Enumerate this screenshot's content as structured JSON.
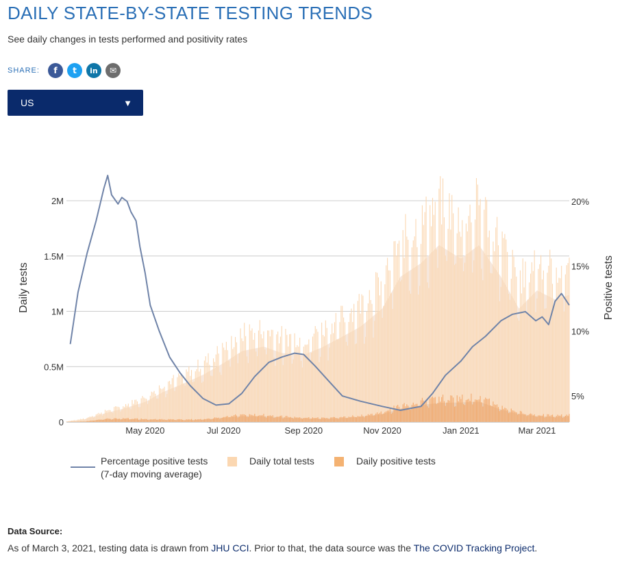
{
  "header": {
    "title": "DAILY STATE-BY-STATE TESTING TRENDS",
    "subtitle": "See daily changes in tests performed and positivity rates"
  },
  "share": {
    "label": "SHARE:",
    "buttons": [
      {
        "name": "facebook",
        "glyph": "f",
        "color": "#3b5998"
      },
      {
        "name": "twitter",
        "glyph": "t",
        "color": "#1da1f2"
      },
      {
        "name": "linkedin",
        "glyph": "in",
        "color": "#0e76a8"
      },
      {
        "name": "email",
        "glyph": "✉",
        "color": "#6d6d6d"
      }
    ]
  },
  "selector": {
    "value": "US"
  },
  "legend": {
    "line_label_1": "Percentage positive tests",
    "line_label_2": "(7-day moving average)",
    "total_label": "Daily total tests",
    "positive_label": "Daily positive tests"
  },
  "colors": {
    "line": "#6f83a8",
    "total_bar": "#fbd7b1",
    "total_area": "#f6e7dc",
    "positive_bar": "#f4a460",
    "positive_area": "#e3c4ac",
    "grid": "#cccccc"
  },
  "source": {
    "title": "Data Source:",
    "text_1": "As of March 3, 2021, testing data is drawn from ",
    "link_1": "JHU CCI",
    "text_2": ". Prior to that, the data source was the ",
    "link_2": "The COVID Tracking Project",
    "text_3": "."
  },
  "chart_data": {
    "type": "bar",
    "title": "",
    "ylabel_left": "Daily tests",
    "ylabel_right": "Positive tests",
    "x_ticks": [
      "May 2020",
      "Jul 2020",
      "Sep 2020",
      "Nov 2020",
      "Jan 2021",
      "Mar 2021"
    ],
    "x_tick_dates": [
      "2020-05-01",
      "2020-07-01",
      "2020-09-01",
      "2020-11-01",
      "2021-01-01",
      "2021-03-01"
    ],
    "x_range": [
      "2020-03-01",
      "2021-03-26"
    ],
    "y_left_ticks": [
      "0",
      "0.5M",
      "1M",
      "1.5M",
      "2M"
    ],
    "y_left_tick_values": [
      0,
      500000,
      1000000,
      1500000,
      2000000
    ],
    "y_left_range": [
      0,
      2000000
    ],
    "y_right_ticks": [
      "5%",
      "10%",
      "15%",
      "20%"
    ],
    "y_right_tick_values": [
      5,
      10,
      15,
      20
    ],
    "y_right_range": [
      3,
      20
    ],
    "grid": true,
    "series": [
      {
        "name": "Daily total tests",
        "points": [
          [
            "2020-03-01",
            5000
          ],
          [
            "2020-03-15",
            30000
          ],
          [
            "2020-04-01",
            100000
          ],
          [
            "2020-04-15",
            150000
          ],
          [
            "2020-05-01",
            220000
          ],
          [
            "2020-05-15",
            330000
          ],
          [
            "2020-06-01",
            430000
          ],
          [
            "2020-06-15",
            520000
          ],
          [
            "2020-07-01",
            650000
          ],
          [
            "2020-07-15",
            780000
          ],
          [
            "2020-08-01",
            830000
          ],
          [
            "2020-08-15",
            760000
          ],
          [
            "2020-09-01",
            740000
          ],
          [
            "2020-09-15",
            820000
          ],
          [
            "2020-10-01",
            940000
          ],
          [
            "2020-10-15",
            1050000
          ],
          [
            "2020-11-01",
            1250000
          ],
          [
            "2020-11-15",
            1600000
          ],
          [
            "2020-12-01",
            1750000
          ],
          [
            "2020-12-15",
            1950000
          ],
          [
            "2021-01-01",
            1800000
          ],
          [
            "2021-01-15",
            1950000
          ],
          [
            "2021-02-01",
            1600000
          ],
          [
            "2021-02-15",
            1250000
          ],
          [
            "2021-03-01",
            1450000
          ],
          [
            "2021-03-15",
            1350000
          ],
          [
            "2021-03-26",
            1400000
          ]
        ]
      },
      {
        "name": "Daily positive tests",
        "points": [
          [
            "2020-03-01",
            800
          ],
          [
            "2020-03-15",
            5000
          ],
          [
            "2020-04-01",
            30000
          ],
          [
            "2020-04-15",
            32000
          ],
          [
            "2020-05-01",
            28000
          ],
          [
            "2020-05-15",
            24000
          ],
          [
            "2020-06-01",
            22000
          ],
          [
            "2020-06-15",
            26000
          ],
          [
            "2020-07-01",
            48000
          ],
          [
            "2020-07-15",
            66000
          ],
          [
            "2020-08-01",
            64000
          ],
          [
            "2020-08-15",
            52000
          ],
          [
            "2020-09-01",
            40000
          ],
          [
            "2020-09-15",
            38000
          ],
          [
            "2020-10-01",
            44000
          ],
          [
            "2020-10-15",
            58000
          ],
          [
            "2020-11-01",
            90000
          ],
          [
            "2020-11-15",
            150000
          ],
          [
            "2020-12-01",
            190000
          ],
          [
            "2020-12-15",
            215000
          ],
          [
            "2021-01-01",
            220000
          ],
          [
            "2021-01-15",
            230000
          ],
          [
            "2021-02-01",
            140000
          ],
          [
            "2021-02-15",
            90000
          ],
          [
            "2021-03-01",
            65000
          ],
          [
            "2021-03-15",
            58000
          ],
          [
            "2021-03-26",
            64000
          ]
        ]
      },
      {
        "name": "Percentage positive tests (7-day moving average)",
        "points": [
          [
            "2020-03-04",
            9.0
          ],
          [
            "2020-03-10",
            13.0
          ],
          [
            "2020-03-17",
            16.0
          ],
          [
            "2020-03-24",
            18.5
          ],
          [
            "2020-03-30",
            21.0
          ],
          [
            "2020-04-02",
            22.0
          ],
          [
            "2020-04-05",
            20.5
          ],
          [
            "2020-04-10",
            19.8
          ],
          [
            "2020-04-13",
            20.3
          ],
          [
            "2020-04-17",
            20.0
          ],
          [
            "2020-04-20",
            19.2
          ],
          [
            "2020-04-24",
            18.5
          ],
          [
            "2020-04-27",
            16.5
          ],
          [
            "2020-05-01",
            14.5
          ],
          [
            "2020-05-05",
            12.0
          ],
          [
            "2020-05-12",
            10.0
          ],
          [
            "2020-05-20",
            8.0
          ],
          [
            "2020-05-28",
            6.8
          ],
          [
            "2020-06-05",
            5.8
          ],
          [
            "2020-06-15",
            4.8
          ],
          [
            "2020-06-25",
            4.3
          ],
          [
            "2020-07-05",
            4.4
          ],
          [
            "2020-07-15",
            5.2
          ],
          [
            "2020-07-25",
            6.5
          ],
          [
            "2020-08-05",
            7.6
          ],
          [
            "2020-08-15",
            8.0
          ],
          [
            "2020-08-25",
            8.3
          ],
          [
            "2020-09-01",
            8.2
          ],
          [
            "2020-09-10",
            7.3
          ],
          [
            "2020-09-20",
            6.2
          ],
          [
            "2020-10-01",
            5.0
          ],
          [
            "2020-10-15",
            4.6
          ],
          [
            "2020-11-01",
            4.2
          ],
          [
            "2020-11-15",
            3.9
          ],
          [
            "2020-12-01",
            4.2
          ],
          [
            "2020-12-10",
            5.2
          ],
          [
            "2020-12-20",
            6.6
          ],
          [
            "2021-01-01",
            7.7
          ],
          [
            "2021-01-10",
            8.8
          ],
          [
            "2021-01-20",
            9.6
          ],
          [
            "2021-02-01",
            10.8
          ],
          [
            "2021-02-10",
            11.3
          ],
          [
            "2021-02-20",
            11.5
          ],
          [
            "2021-02-28",
            10.8
          ],
          [
            "2021-03-05",
            11.1
          ],
          [
            "2021-03-10",
            10.5
          ],
          [
            "2021-03-15",
            12.3
          ],
          [
            "2021-03-20",
            12.9
          ],
          [
            "2021-03-26",
            12.0
          ]
        ]
      }
    ]
  }
}
